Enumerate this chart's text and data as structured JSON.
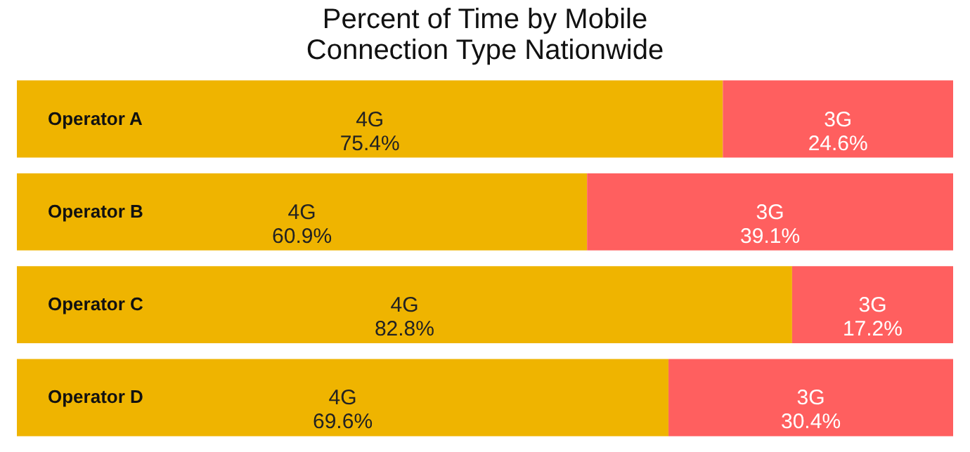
{
  "chart_data": {
    "type": "bar",
    "orientation": "horizontal",
    "stacked": true,
    "title": "Percent of Time by Mobile\nConnection Type Nationwide",
    "categories": [
      "Operator A",
      "Operator B",
      "Operator C",
      "Operator D"
    ],
    "series": [
      {
        "name": "4G",
        "color": "#efb400",
        "values": [
          75.4,
          60.9,
          82.8,
          69.6
        ],
        "value_labels": [
          "75.4%",
          "60.9%",
          "82.8%",
          "69.6%"
        ]
      },
      {
        "name": "3G",
        "color": "#ff5f5f",
        "values": [
          24.6,
          39.1,
          17.2,
          30.4
        ],
        "value_labels": [
          "24.6%",
          "39.1%",
          "17.2%",
          "30.4%"
        ]
      }
    ],
    "xlim": [
      0,
      100
    ],
    "tick_labels": false
  }
}
